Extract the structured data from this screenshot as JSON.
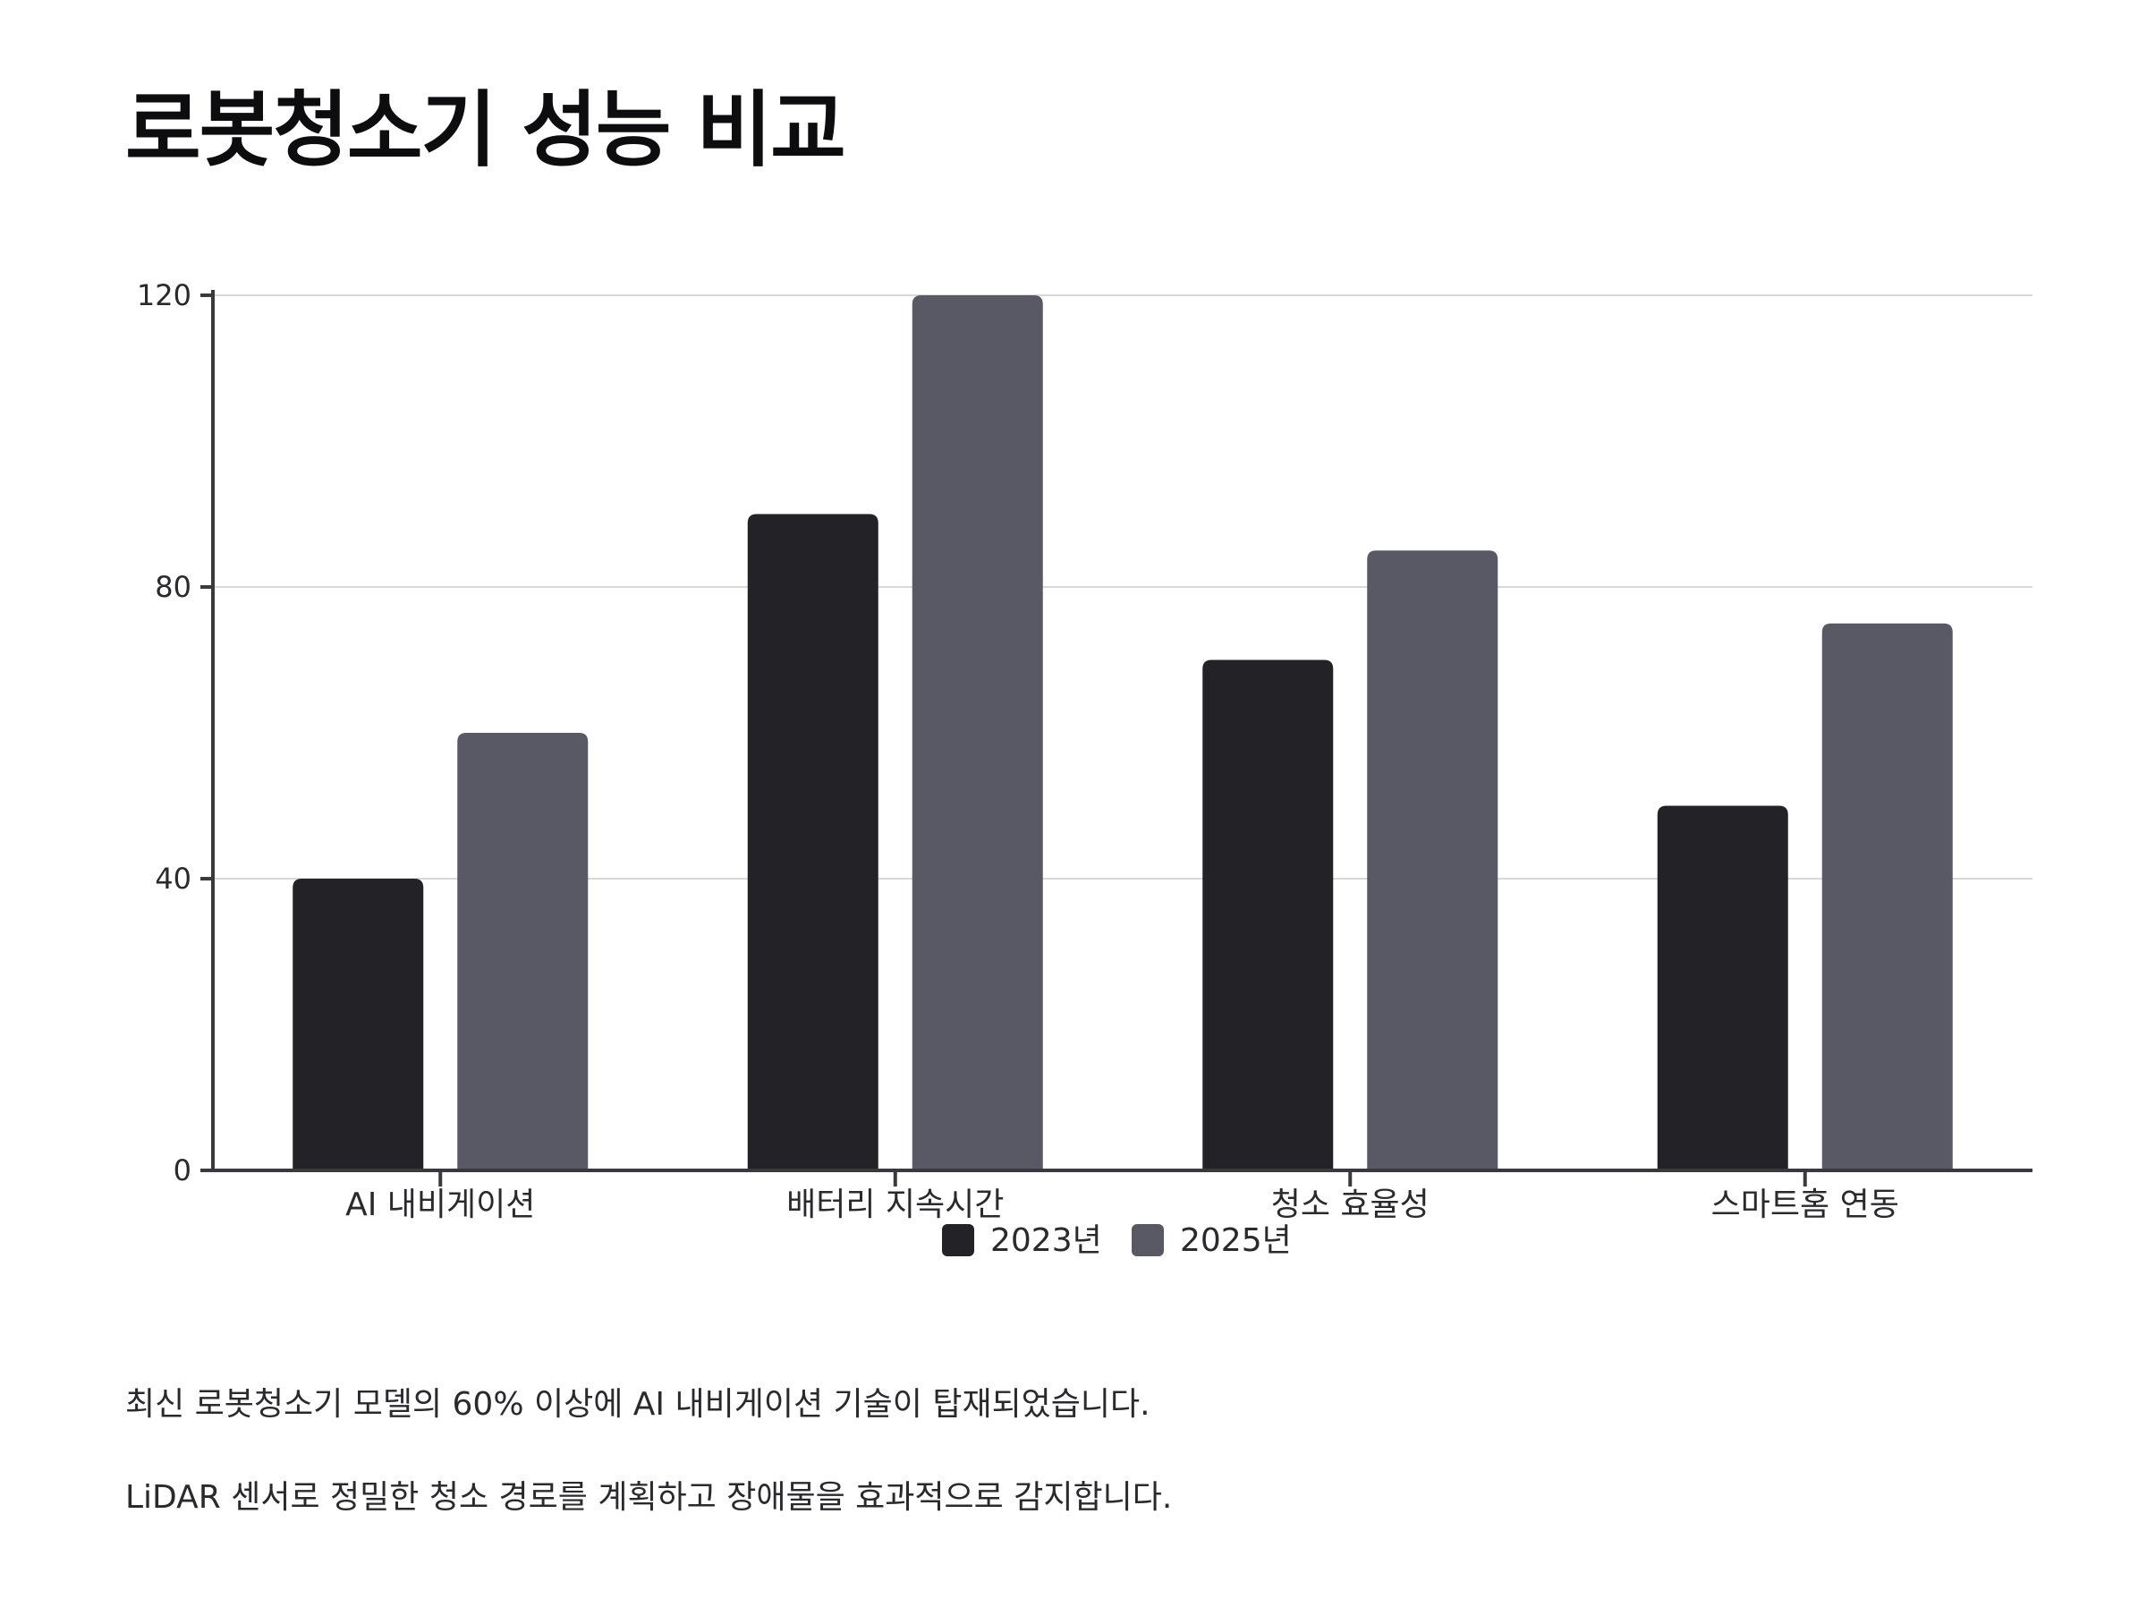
{
  "title": "로봇청소기 성능 비교",
  "notes": [
    "최신 로봇청소기 모델의 60% 이상에 AI 내비게이션 기술이 탑재되었습니다.",
    "LiDAR 센서로 정밀한 청소 경로를 계획하고 장애물을 효과적으로 감지합니다."
  ],
  "chart_data": {
    "type": "bar",
    "categories": [
      "AI 내비게이션",
      "배터리 지속시간",
      "청소 효율성",
      "스마트홈 연동"
    ],
    "series": [
      {
        "name": "2023년",
        "values": [
          40,
          90,
          70,
          50
        ],
        "color": "#232327"
      },
      {
        "name": "2025년",
        "values": [
          60,
          120,
          85,
          75
        ],
        "color": "#595965"
      }
    ],
    "ylim": [
      0,
      120
    ],
    "yticks": [
      0,
      40,
      80,
      120
    ],
    "grid": true,
    "legend": "bottom-center",
    "title": "",
    "xlabel": "",
    "ylabel": ""
  }
}
